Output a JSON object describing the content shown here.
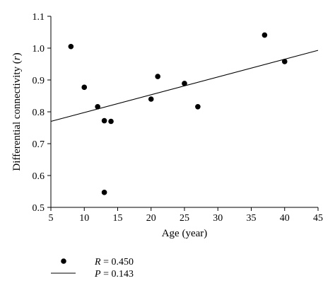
{
  "chart_data": {
    "type": "scatter",
    "xlabel": "Age (year)",
    "ylabel_main": "Differential connectivity (",
    "ylabel_var": "r",
    "ylabel_close": ")",
    "xlim": [
      5,
      45
    ],
    "ylim": [
      0.5,
      1.1
    ],
    "xticks": [
      "5",
      "10",
      "15",
      "20",
      "25",
      "30",
      "35",
      "40",
      "45"
    ],
    "yticks": [
      "0.5",
      "0.6",
      "0.7",
      "0.8",
      "0.9",
      "1.0",
      "1.1"
    ],
    "grid": false,
    "points": [
      {
        "x": 8,
        "y": 1.005
      },
      {
        "x": 10,
        "y": 0.877
      },
      {
        "x": 12,
        "y": 0.816
      },
      {
        "x": 13,
        "y": 0.772
      },
      {
        "x": 14,
        "y": 0.77
      },
      {
        "x": 13,
        "y": 0.547
      },
      {
        "x": 20,
        "y": 0.84
      },
      {
        "x": 21,
        "y": 0.911
      },
      {
        "x": 25,
        "y": 0.889
      },
      {
        "x": 27,
        "y": 0.816
      },
      {
        "x": 37,
        "y": 1.041
      },
      {
        "x": 40,
        "y": 0.958
      }
    ],
    "fit_line": {
      "x": [
        5,
        45
      ],
      "y": [
        0.77,
        0.993
      ]
    },
    "legend": [
      {
        "marker": "point",
        "var": "R",
        "text": " = 0.450"
      },
      {
        "marker": "line",
        "var": "P",
        "text": " = 0.143"
      }
    ],
    "legend_position": "bottom-left"
  }
}
